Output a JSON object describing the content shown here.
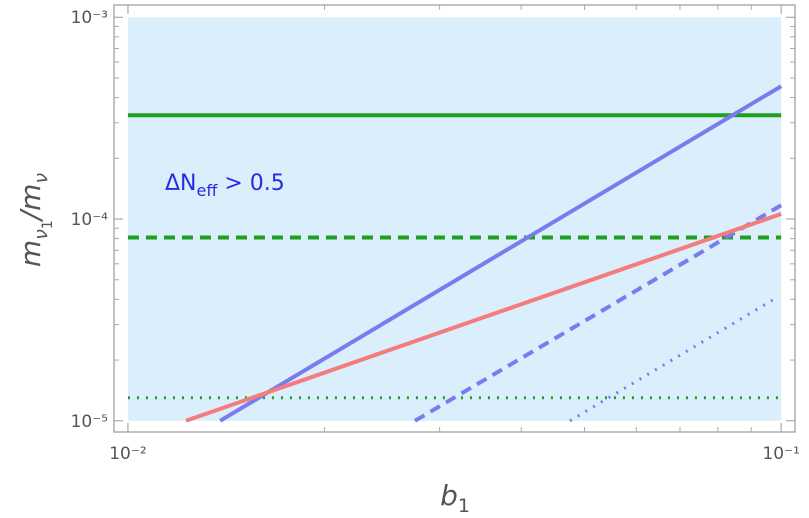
{
  "chart_data": {
    "type": "line",
    "log_x": true,
    "log_y": true,
    "xlim": [
      0.00952,
      0.105
    ],
    "ylim": [
      8.8e-06,
      0.00115
    ],
    "xticks": [
      {
        "value": 0.01,
        "label": "10⁻²"
      },
      {
        "value": 0.1,
        "label": "10⁻¹"
      }
    ],
    "yticks": [
      {
        "value": 1e-05,
        "label": "10⁻⁵"
      },
      {
        "value": 0.0001,
        "label": "10⁻⁴"
      },
      {
        "value": 0.001,
        "label": "10⁻³"
      }
    ],
    "xminorticks": [
      0.02,
      0.03,
      0.04,
      0.05,
      0.06,
      0.07,
      0.08,
      0.09
    ],
    "yminorticks": [
      2e-05,
      3e-05,
      4e-05,
      5e-05,
      6e-05,
      7e-05,
      8e-05,
      9e-05,
      0.0002,
      0.0003,
      0.0004,
      0.0005,
      0.0006,
      0.0007,
      0.0008,
      0.0009
    ],
    "x_label": [
      "b",
      "1"
    ],
    "y_label": [
      "m",
      "ν",
      "1",
      "/m",
      "ν"
    ],
    "annotation": [
      "ΔN",
      "eff",
      " > 0.5"
    ],
    "annotation_color": "#2a2ae0",
    "region": {
      "x": [
        0.01,
        0.1
      ],
      "values": [
        1e-05,
        0.001
      ],
      "color": "#dbeefb"
    },
    "series": [
      {
        "color": "#1f9e1f",
        "dash": "solid",
        "x": [
          0.01,
          0.1
        ],
        "values": [
          0.000327,
          0.000327
        ]
      },
      {
        "color": "#1f9e1f",
        "dash": "dashed",
        "x": [
          0.01,
          0.1
        ],
        "values": [
          8.1e-05,
          8.1e-05
        ]
      },
      {
        "color": "#1f9e1f",
        "dash": "dotted",
        "x": [
          0.01,
          0.1
        ],
        "values": [
          1.3e-05,
          1.3e-05
        ]
      },
      {
        "color": "#7b7bf0",
        "dash": "solid",
        "x": [
          0.01384,
          0.1
        ],
        "values": [
          1e-05,
          0.000455
        ]
      },
      {
        "color": "#7b7bf0",
        "dash": "dashed",
        "x": [
          0.0275,
          0.1
        ],
        "values": [
          1e-05,
          0.000117
        ]
      },
      {
        "color": "#7b7bf0",
        "dash": "dotted",
        "x": [
          0.0475,
          0.0982
        ],
        "values": [
          1e-05,
          4.06e-05
        ]
      },
      {
        "color": "#f47c7c",
        "dash": "solid",
        "x": [
          0.01227,
          0.1
        ],
        "values": [
          1e-05,
          0.000106
        ]
      }
    ]
  }
}
